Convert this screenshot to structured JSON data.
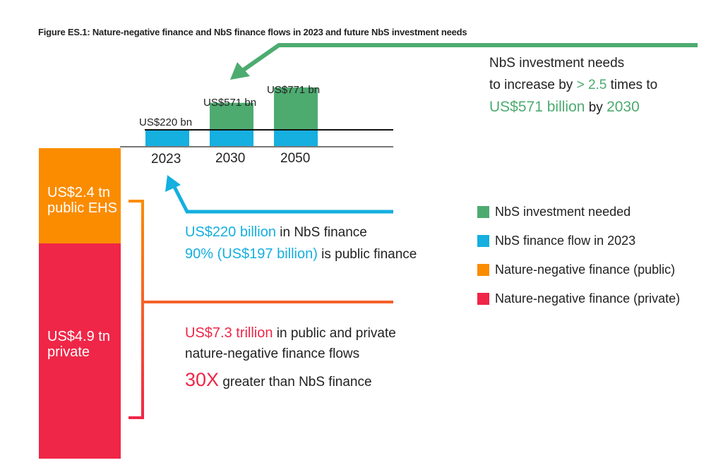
{
  "title": "Figure ES.1: Nature-negative finance and NbS finance flows in 2023 and future NbS investment needs",
  "colors": {
    "green": "#4dab70",
    "blue": "#15afe0",
    "orange": "#fb8c00",
    "red": "#ef2647"
  },
  "chart_data": {
    "type": "bar",
    "categories": [
      "2023",
      "2030",
      "2050"
    ],
    "series": [
      {
        "name": "NbS finance flow in 2023",
        "values": [
          220,
          220,
          220
        ]
      },
      {
        "name": "NbS investment needed",
        "values": [
          0,
          351,
          551
        ]
      }
    ],
    "totals_labels": [
      "US$220 bn",
      "US$571 bn",
      "US$771 bn"
    ],
    "unit": "US$ bn",
    "stacked_bar": {
      "segments": [
        {
          "name": "Nature-negative finance (public)",
          "value": 2.4,
          "label_1": "US$2.4 tn",
          "label_2": "public EHS"
        },
        {
          "name": "Nature-negative finance (private)",
          "value": 4.9,
          "label_1": "US$4.9 tn",
          "label_2": "private"
        }
      ],
      "unit": "US$ tn"
    },
    "legend": [
      "NbS investment needed",
      "NbS finance flow in 2023",
      "Nature-negative finance (public)",
      "Nature-negative finance (private)"
    ],
    "legend_position": "right"
  },
  "annotations": {
    "needs": {
      "l1": "NbS investment needs",
      "l2a": "to increase by ",
      "l2b": "> 2.5",
      "l2c": " times to",
      "l3a": "US$571 billion",
      "l3b": " by ",
      "l3c": "2030"
    },
    "flow": {
      "l1a": "US$220 billion",
      "l1b": " in NbS finance",
      "l2a": "90% (US$197 billion)",
      "l2b": " is public finance"
    },
    "negative": {
      "l1a": "US$7.3 trillion",
      "l1b": " in public and private",
      "l2": "nature-negative finance flows",
      "l3a": "30X",
      "l3b": " greater than NbS finance"
    }
  }
}
